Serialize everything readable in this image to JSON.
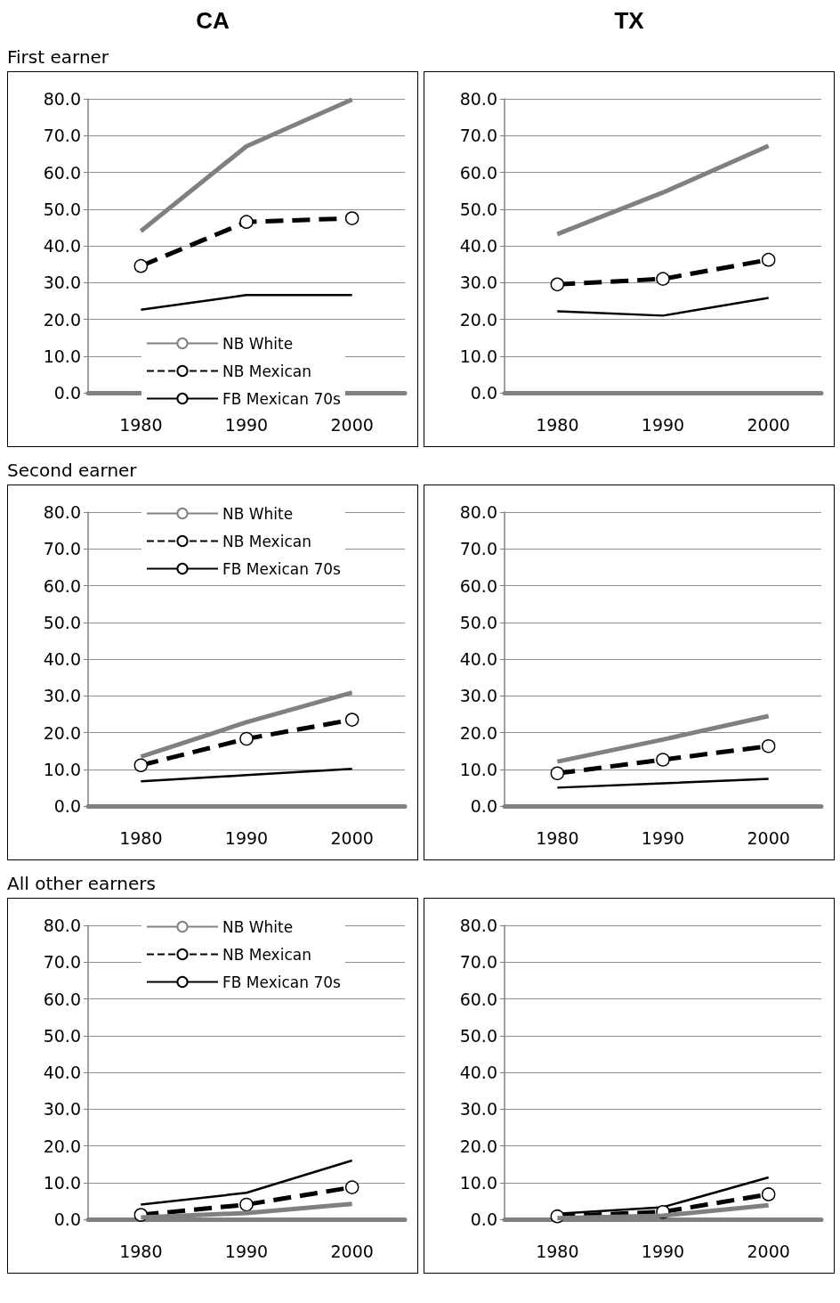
{
  "chart_data": [
    {
      "type": "line",
      "title": "CA",
      "subtitle": "First earner",
      "categories": [
        "1980",
        "1990",
        "2000"
      ],
      "ylim": [
        0,
        80
      ],
      "yticks": [
        {
          "value": 0,
          "label": "0.0"
        },
        {
          "value": 10,
          "label": "10.0"
        },
        {
          "value": 20,
          "label": "20.0"
        },
        {
          "value": 30,
          "label": "30.0"
        },
        {
          "value": 40,
          "label": "40.0"
        },
        {
          "value": 50,
          "label": "50.0"
        },
        {
          "value": 60,
          "label": "60.0"
        },
        {
          "value": 70,
          "label": "70.0"
        },
        {
          "value": 80,
          "label": "80.0"
        }
      ],
      "grid": "y",
      "legend": "bottom",
      "series": [
        {
          "name": "NB White",
          "color": "#808080",
          "values": [
            44.0,
            67.1,
            79.8
          ],
          "marker": "none",
          "line_style": "solid"
        },
        {
          "name": "NB Mexican",
          "color": "#000000",
          "values": [
            34.5,
            46.5,
            47.5
          ],
          "marker": "circle",
          "line_style": "dashed"
        },
        {
          "name": "FB Mexican 70s",
          "color": "#000000",
          "values": [
            22.6,
            26.6,
            26.6
          ],
          "marker": "none",
          "line_style": "solid"
        }
      ]
    },
    {
      "type": "line",
      "title": "TX",
      "categories": [
        "1980",
        "1990",
        "2000"
      ],
      "ylim": [
        0,
        80
      ],
      "yticks": [
        {
          "value": 0,
          "label": "0.0"
        },
        {
          "value": 10,
          "label": "10.0"
        },
        {
          "value": 20,
          "label": "20.0"
        },
        {
          "value": 30,
          "label": "30.0"
        },
        {
          "value": 40,
          "label": "40.0"
        },
        {
          "value": 50,
          "label": "50.0"
        },
        {
          "value": 60,
          "label": "60.0"
        },
        {
          "value": 70,
          "label": "70.0"
        },
        {
          "value": 80,
          "label": "80.0"
        }
      ],
      "grid": "y",
      "series": [
        {
          "color": "#808080",
          "values": [
            43.2,
            54.5,
            67.2
          ],
          "marker": "none",
          "line_style": "solid"
        },
        {
          "color": "#000000",
          "values": [
            29.5,
            31.0,
            36.2
          ],
          "marker": "circle",
          "line_style": "dashed"
        },
        {
          "color": "#000000",
          "values": [
            22.2,
            21.0,
            25.8
          ],
          "marker": "none",
          "line_style": "solid"
        }
      ]
    },
    {
      "type": "line",
      "subtitle": "Second earner",
      "categories": [
        "1980",
        "1990",
        "2000"
      ],
      "ylim": [
        0,
        80
      ],
      "yticks": [
        {
          "value": 0,
          "label": "0.0"
        },
        {
          "value": 10,
          "label": "10.0"
        },
        {
          "value": 20,
          "label": "20.0"
        },
        {
          "value": 30,
          "label": "30.0"
        },
        {
          "value": 40,
          "label": "40.0"
        },
        {
          "value": 50,
          "label": "50.0"
        },
        {
          "value": 60,
          "label": "60.0"
        },
        {
          "value": 70,
          "label": "70.0"
        },
        {
          "value": 80,
          "label": "80.0"
        }
      ],
      "grid": "y",
      "legend": "top",
      "series": [
        {
          "name": "NB White",
          "color": "#808080",
          "values": [
            13.4,
            22.8,
            30.9
          ],
          "marker": "none",
          "line_style": "solid"
        },
        {
          "name": "NB Mexican",
          "color": "#000000",
          "values": [
            11.1,
            18.3,
            23.5
          ],
          "marker": "circle",
          "line_style": "dashed"
        },
        {
          "name": "FB Mexican 70s",
          "color": "#000000",
          "values": [
            6.7,
            8.4,
            10.1
          ],
          "marker": "none",
          "line_style": "solid"
        }
      ]
    },
    {
      "type": "line",
      "categories": [
        "1980",
        "1990",
        "2000"
      ],
      "ylim": [
        0,
        80
      ],
      "yticks": [
        {
          "value": 0,
          "label": "0.0"
        },
        {
          "value": 10,
          "label": "10.0"
        },
        {
          "value": 20,
          "label": "20.0"
        },
        {
          "value": 30,
          "label": "30.0"
        },
        {
          "value": 40,
          "label": "40.0"
        },
        {
          "value": 50,
          "label": "50.0"
        },
        {
          "value": 60,
          "label": "60.0"
        },
        {
          "value": 70,
          "label": "70.0"
        },
        {
          "value": 80,
          "label": "80.0"
        }
      ],
      "grid": "y",
      "series": [
        {
          "color": "#808080",
          "values": [
            12.1,
            18.1,
            24.5
          ],
          "marker": "none",
          "line_style": "solid"
        },
        {
          "color": "#000000",
          "values": [
            8.9,
            12.6,
            16.3
          ],
          "marker": "circle",
          "line_style": "dashed"
        },
        {
          "color": "#000000",
          "values": [
            5.0,
            6.2,
            7.4
          ],
          "marker": "none",
          "line_style": "solid"
        }
      ]
    },
    {
      "type": "line",
      "subtitle": "All other earners",
      "categories": [
        "1980",
        "1990",
        "2000"
      ],
      "ylim": [
        0,
        80
      ],
      "yticks": [
        {
          "value": 0,
          "label": "0.0"
        },
        {
          "value": 10,
          "label": "10.0"
        },
        {
          "value": 20,
          "label": "20.0"
        },
        {
          "value": 30,
          "label": "30.0"
        },
        {
          "value": 40,
          "label": "40.0"
        },
        {
          "value": 50,
          "label": "50.0"
        },
        {
          "value": 60,
          "label": "60.0"
        },
        {
          "value": 70,
          "label": "70.0"
        },
        {
          "value": 80,
          "label": "80.0"
        }
      ],
      "grid": "y",
      "legend": "top",
      "series": [
        {
          "name": "NB White",
          "color": "#808080",
          "values": [
            0.5,
            1.7,
            4.2
          ],
          "marker": "none",
          "line_style": "solid"
        },
        {
          "name": "NB Mexican",
          "color": "#000000",
          "values": [
            1.2,
            4.0,
            8.7
          ],
          "marker": "circle",
          "line_style": "dashed"
        },
        {
          "name": "FB Mexican 70s",
          "color": "#000000",
          "values": [
            4.0,
            7.2,
            16.0
          ],
          "marker": "none",
          "line_style": "solid"
        }
      ]
    },
    {
      "type": "line",
      "categories": [
        "1980",
        "1990",
        "2000"
      ],
      "ylim": [
        0,
        80
      ],
      "yticks": [
        {
          "value": 0,
          "label": "0.0"
        },
        {
          "value": 10,
          "label": "10.0"
        },
        {
          "value": 20,
          "label": "20.0"
        },
        {
          "value": 30,
          "label": "30.0"
        },
        {
          "value": 40,
          "label": "40.0"
        },
        {
          "value": 50,
          "label": "50.0"
        },
        {
          "value": 60,
          "label": "60.0"
        },
        {
          "value": 70,
          "label": "70.0"
        },
        {
          "value": 80,
          "label": "80.0"
        }
      ],
      "grid": "y",
      "series": [
        {
          "color": "#808080",
          "values": [
            0.3,
            1.0,
            3.8
          ],
          "marker": "none",
          "line_style": "solid"
        },
        {
          "color": "#000000",
          "values": [
            0.8,
            2.0,
            6.8
          ],
          "marker": "circle",
          "line_style": "dashed"
        },
        {
          "color": "#000000",
          "values": [
            1.5,
            3.3,
            11.4
          ],
          "marker": "none",
          "line_style": "solid"
        }
      ]
    }
  ]
}
